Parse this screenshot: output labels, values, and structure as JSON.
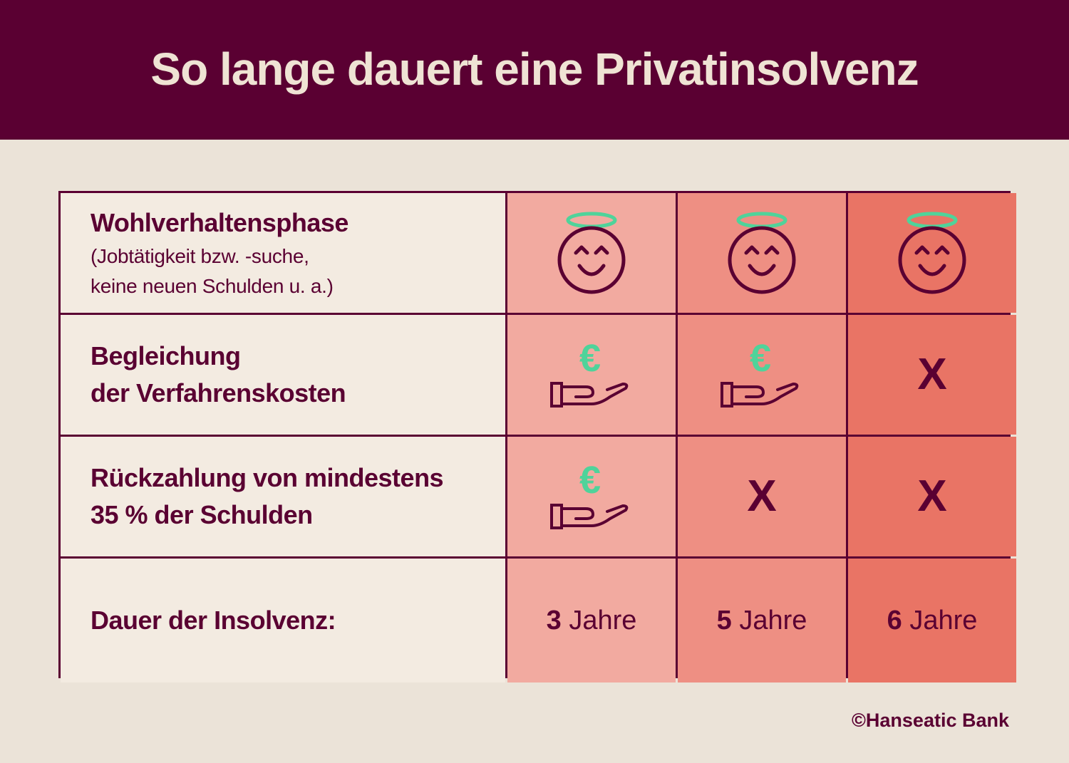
{
  "header": {
    "title": "So lange dauert eine Privatinsolvenz"
  },
  "rows": [
    {
      "label": "Wohlverhaltensphase",
      "sub": [
        "(Jobtätigkeit bzw. -suche,",
        "keine neuen Schulden u. a.)"
      ]
    },
    {
      "label": [
        "Begleichung",
        "der Verfahrenskosten"
      ]
    },
    {
      "label": [
        "Rückzahlung von mindestens",
        "35 % der Schulden"
      ]
    },
    {
      "label": "Dauer der Insolvenz:"
    }
  ],
  "columns": [
    {
      "col": 1,
      "conduct": "halo-smiley-icon",
      "costs": "euro-hand-icon",
      "repayment": "euro-hand-icon",
      "years": "3",
      "unit": "Jahre"
    },
    {
      "col": 2,
      "conduct": "halo-smiley-icon",
      "costs": "euro-hand-icon",
      "repayment": "X",
      "years": "5",
      "unit": "Jahre"
    },
    {
      "col": 3,
      "conduct": "halo-smiley-icon",
      "costs": "X",
      "repayment": "X",
      "years": "6",
      "unit": "Jahre"
    }
  ],
  "marks": {
    "no": "X"
  },
  "colors": {
    "brand": "#5a0032",
    "background": "#ebe3d8",
    "label_bg": "#f3ebe1",
    "col1": "#f2aaa0",
    "col2": "#ee8f83",
    "col3": "#e97465",
    "accent": "#4fd39a"
  },
  "footer": {
    "copyright": "©Hanseatic Bank"
  }
}
